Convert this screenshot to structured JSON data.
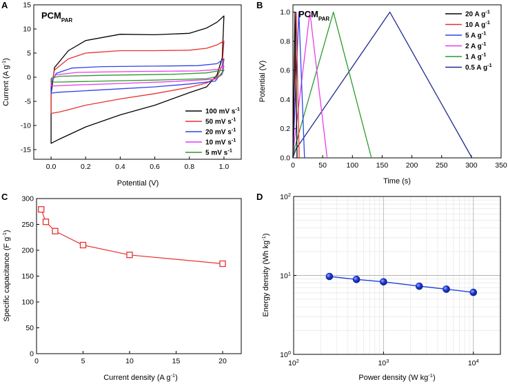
{
  "chart_data": [
    {
      "panel": "A",
      "type": "line",
      "title": "PCM",
      "title_sub": "PAR",
      "xlabel": "Potential (V)",
      "ylabel": "Current (A g",
      "ylabel_sup": "-1",
      "ylabel_end": ")",
      "xlim": [
        -0.1,
        1.1
      ],
      "ylim": [
        -17,
        15
      ],
      "xticks": [
        0.0,
        0.2,
        0.4,
        0.6,
        0.8,
        1.0
      ],
      "xtick_labels": [
        "0.0",
        "0.2",
        "0.4",
        "0.6",
        "0.8",
        "1.0"
      ],
      "yticks": [
        -15,
        -10,
        -5,
        0,
        5,
        10,
        15
      ],
      "ytick_labels": [
        "-15",
        "-10",
        "-5",
        "0",
        "5",
        "10",
        "15"
      ],
      "legend_position": "bottom-right",
      "series": [
        {
          "name": "100 mV s",
          "sup": "-1",
          "color": "#000000",
          "upper": [
            [
              0.0,
              -3.5
            ],
            [
              0.02,
              2.0
            ],
            [
              0.1,
              5.5
            ],
            [
              0.2,
              7.6
            ],
            [
              0.4,
              8.9
            ],
            [
              0.6,
              8.8
            ],
            [
              0.8,
              9.1
            ],
            [
              0.9,
              10.2
            ],
            [
              0.96,
              11.4
            ],
            [
              1.0,
              12.7
            ]
          ],
          "lower": [
            [
              1.0,
              12.7
            ],
            [
              0.99,
              4.0
            ],
            [
              0.96,
              0.5
            ],
            [
              0.9,
              -2.0
            ],
            [
              0.8,
              -3.2
            ],
            [
              0.6,
              -5.8
            ],
            [
              0.4,
              -7.8
            ],
            [
              0.2,
              -10.3
            ],
            [
              0.05,
              -12.8
            ],
            [
              0.0,
              -13.7
            ],
            [
              0.0,
              -3.5
            ]
          ]
        },
        {
          "name": "50 mV s",
          "sup": "-1",
          "color": "#e8302c",
          "upper": [
            [
              0.0,
              -2.0
            ],
            [
              0.02,
              1.5
            ],
            [
              0.1,
              3.8
            ],
            [
              0.2,
              5.0
            ],
            [
              0.4,
              5.5
            ],
            [
              0.6,
              5.5
            ],
            [
              0.8,
              5.6
            ],
            [
              0.9,
              6.0
            ],
            [
              0.96,
              6.7
            ],
            [
              1.0,
              7.5
            ]
          ],
          "lower": [
            [
              1.0,
              7.5
            ],
            [
              0.99,
              2.5
            ],
            [
              0.96,
              0.0
            ],
            [
              0.9,
              -1.2
            ],
            [
              0.8,
              -2.1
            ],
            [
              0.6,
              -3.4
            ],
            [
              0.4,
              -4.5
            ],
            [
              0.2,
              -5.8
            ],
            [
              0.05,
              -7.2
            ],
            [
              0.0,
              -7.5
            ],
            [
              0.0,
              -2.0
            ]
          ]
        },
        {
          "name": "20 mV s",
          "sup": "-1",
          "color": "#2a44e8",
          "upper": [
            [
              0.0,
              -1.2
            ],
            [
              0.03,
              0.8
            ],
            [
              0.12,
              1.9
            ],
            [
              0.3,
              2.2
            ],
            [
              0.6,
              2.3
            ],
            [
              0.85,
              2.4
            ],
            [
              0.96,
              2.8
            ],
            [
              1.0,
              3.8
            ]
          ],
          "lower": [
            [
              1.0,
              3.8
            ],
            [
              0.99,
              1.0
            ],
            [
              0.95,
              -0.8
            ],
            [
              0.8,
              -1.4
            ],
            [
              0.6,
              -2.0
            ],
            [
              0.4,
              -2.4
            ],
            [
              0.2,
              -2.8
            ],
            [
              0.05,
              -3.1
            ],
            [
              0.0,
              -3.3
            ],
            [
              0.0,
              -1.2
            ]
          ]
        },
        {
          "name": "10 mV s",
          "sup": "-1",
          "color": "#e83ce8",
          "upper": [
            [
              0.0,
              -0.6
            ],
            [
              0.03,
              0.5
            ],
            [
              0.15,
              1.0
            ],
            [
              0.5,
              1.2
            ],
            [
              0.85,
              1.3
            ],
            [
              0.96,
              1.6
            ],
            [
              1.0,
              2.3
            ]
          ],
          "lower": [
            [
              1.0,
              2.3
            ],
            [
              0.99,
              0.6
            ],
            [
              0.95,
              -0.4
            ],
            [
              0.7,
              -0.9
            ],
            [
              0.4,
              -1.3
            ],
            [
              0.15,
              -1.6
            ],
            [
              0.02,
              -1.8
            ],
            [
              0.0,
              -1.8
            ],
            [
              0.0,
              -0.6
            ]
          ]
        },
        {
          "name": "5 mV s",
          "sup": "-1",
          "color": "#2a9a2a",
          "upper": [
            [
              0.0,
              -0.2
            ],
            [
              0.05,
              0.2
            ],
            [
              0.3,
              0.4
            ],
            [
              0.7,
              0.6
            ],
            [
              0.9,
              0.9
            ],
            [
              1.0,
              1.5
            ]
          ],
          "lower": [
            [
              1.0,
              1.5
            ],
            [
              0.98,
              0.3
            ],
            [
              0.9,
              -0.3
            ],
            [
              0.6,
              -0.6
            ],
            [
              0.3,
              -0.8
            ],
            [
              0.05,
              -1.0
            ],
            [
              0.0,
              -1.0
            ],
            [
              0.0,
              -0.2
            ]
          ]
        }
      ]
    },
    {
      "panel": "B",
      "type": "line",
      "title": "PCM",
      "title_sub": "PAR",
      "xlabel": "Time (s)",
      "ylabel": "Potential (V)",
      "xlim": [
        0,
        350
      ],
      "ylim": [
        0,
        1.05
      ],
      "xticks": [
        0,
        50,
        100,
        150,
        200,
        250,
        300,
        350
      ],
      "xtick_labels": [
        "0",
        "50",
        "100",
        "150",
        "200",
        "250",
        "300",
        "350"
      ],
      "yticks": [
        0.0,
        0.2,
        0.4,
        0.6,
        0.8,
        1.0
      ],
      "ytick_labels": [
        "0.0",
        "0.2",
        "0.4",
        "0.6",
        "0.8",
        "1.0"
      ],
      "legend_position": "top-right",
      "series": [
        {
          "name": "20 A g",
          "sup": "-1",
          "color": "#000000",
          "points": [
            [
              0,
              0.0
            ],
            [
              0.3,
              0.12
            ],
            [
              3.5,
              1.0
            ],
            [
              7,
              0.0
            ]
          ]
        },
        {
          "name": "10 A g",
          "sup": "-1",
          "color": "#e8302c",
          "points": [
            [
              0,
              0.0
            ],
            [
              0.5,
              0.1
            ],
            [
              5.5,
              1.0
            ],
            [
              10.5,
              0.0
            ]
          ]
        },
        {
          "name": "5 A g",
          "sup": "-1",
          "color": "#2a44e8",
          "points": [
            [
              0,
              0.0
            ],
            [
              0.8,
              0.09
            ],
            [
              10,
              1.0
            ],
            [
              19.5,
              0.0
            ]
          ]
        },
        {
          "name": "2 A g",
          "sup": "-1",
          "color": "#e83ce8",
          "points": [
            [
              0,
              0.0
            ],
            [
              1.5,
              0.08
            ],
            [
              28.5,
              1.0
            ],
            [
              57.5,
              0.0
            ]
          ]
        },
        {
          "name": "1 A g",
          "sup": "-1",
          "color": "#2a9a2a",
          "points": [
            [
              0,
              0.0
            ],
            [
              3,
              0.07
            ],
            [
              68,
              1.0
            ],
            [
              132,
              0.0
            ]
          ]
        },
        {
          "name": "0.5 A g",
          "sup": "-1",
          "color": "#1e2a8c",
          "points": [
            [
              0,
              0.0
            ],
            [
              5,
              0.06
            ],
            [
              163,
              1.0
            ],
            [
              301,
              0.0
            ]
          ]
        }
      ]
    },
    {
      "panel": "C",
      "type": "line",
      "xlabel": "Current density (A g",
      "xlabel_sup": "-1",
      "xlabel_end": ")",
      "ylabel": "Specific capacitance (F g",
      "ylabel_sup": "-1",
      "ylabel_end": ")",
      "xlim": [
        0,
        22
      ],
      "ylim": [
        0,
        300
      ],
      "xticks": [
        0,
        5,
        10,
        15,
        20
      ],
      "xtick_labels": [
        "0",
        "5",
        "10",
        "15",
        "20"
      ],
      "yticks": [
        0,
        50,
        100,
        150,
        200,
        250,
        300
      ],
      "ytick_labels": [
        "0",
        "50",
        "100",
        "150",
        "200",
        "250",
        "300"
      ],
      "color": "#e8302c",
      "x": [
        0.5,
        1,
        2,
        5,
        10,
        20
      ],
      "y": [
        279,
        255,
        237,
        210,
        191,
        174
      ]
    },
    {
      "panel": "D",
      "type": "scatter",
      "xscale": "log",
      "yscale": "log",
      "xlabel": "Power density (W kg",
      "xlabel_sup": "-1",
      "xlabel_end": ")",
      "ylabel": "Energy density (Wh kg",
      "ylabel_sup": "-1",
      "ylabel_end": ")",
      "xlim": [
        100,
        20000
      ],
      "ylim": [
        1,
        100
      ],
      "xtick_bases": [
        "10",
        "10",
        "10"
      ],
      "xtick_exps": [
        "2",
        "3",
        "4"
      ],
      "ytick_bases": [
        "10",
        "10",
        "10"
      ],
      "ytick_exps": [
        "0",
        "1",
        "2"
      ],
      "grid": true,
      "color": "#1f3ee0",
      "x": [
        250,
        500,
        1000,
        2500,
        5000,
        10000
      ],
      "y": [
        9.7,
        8.9,
        8.3,
        7.3,
        6.7,
        6.1
      ]
    }
  ]
}
